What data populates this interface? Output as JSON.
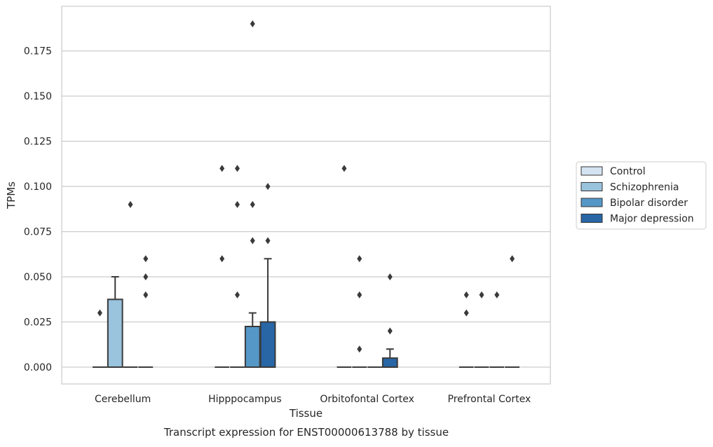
{
  "chart_data": {
    "type": "box",
    "caption": "Transcript expression for ENST00000613788 by tissue",
    "xlabel": "Tissue",
    "ylabel": "TPMs",
    "ylim": [
      -0.0093,
      0.1997
    ],
    "yticks": [
      "0.000",
      "0.025",
      "0.050",
      "0.075",
      "0.100",
      "0.125",
      "0.150",
      "0.175"
    ],
    "grid": "horizontal",
    "legend_position": "right-outside",
    "categories": [
      "Cerebellum",
      "Hipppocampus",
      "Orbitofontal Cortex",
      "Prefrontal Cortex"
    ],
    "series": [
      {
        "name": "Control",
        "color": "#d4e3f1",
        "boxes": [
          {
            "q1": 0,
            "median": 0,
            "q3": 0,
            "whisker_low": 0,
            "whisker_high": 0,
            "outliers": [
              0.03
            ]
          },
          {
            "q1": 0,
            "median": 0,
            "q3": 0,
            "whisker_low": 0,
            "whisker_high": 0,
            "outliers": [
              0.06,
              0.11
            ]
          },
          {
            "q1": 0,
            "median": 0,
            "q3": 0,
            "whisker_low": 0,
            "whisker_high": 0,
            "outliers": [
              0.11
            ]
          },
          {
            "q1": 0,
            "median": 0,
            "q3": 0,
            "whisker_low": 0,
            "whisker_high": 0,
            "outliers": [
              0.03,
              0.04
            ]
          }
        ]
      },
      {
        "name": "Schizophrenia",
        "color": "#9ac3de",
        "boxes": [
          {
            "q1": 0,
            "median": 0,
            "q3": 0.0375,
            "whisker_low": 0,
            "whisker_high": 0.05,
            "outliers": []
          },
          {
            "q1": 0,
            "median": 0,
            "q3": 0,
            "whisker_low": 0,
            "whisker_high": 0,
            "outliers": [
              0.04,
              0.09,
              0.11
            ]
          },
          {
            "q1": 0,
            "median": 0,
            "q3": 0,
            "whisker_low": 0,
            "whisker_high": 0,
            "outliers": [
              0.01,
              0.04,
              0.06
            ]
          },
          {
            "q1": 0,
            "median": 0,
            "q3": 0,
            "whisker_low": 0,
            "whisker_high": 0,
            "outliers": [
              0.04
            ]
          }
        ]
      },
      {
        "name": "Bipolar disorder",
        "color": "#5597c6",
        "boxes": [
          {
            "q1": 0,
            "median": 0,
            "q3": 0,
            "whisker_low": 0,
            "whisker_high": 0,
            "outliers": [
              0.09
            ]
          },
          {
            "q1": 0,
            "median": 0,
            "q3": 0.0225,
            "whisker_low": 0,
            "whisker_high": 0.03,
            "outliers": [
              0.07,
              0.09,
              0.19
            ]
          },
          {
            "q1": 0,
            "median": 0,
            "q3": 0,
            "whisker_low": 0,
            "whisker_high": 0,
            "outliers": []
          },
          {
            "q1": 0,
            "median": 0,
            "q3": 0,
            "whisker_low": 0,
            "whisker_high": 0,
            "outliers": [
              0.04
            ]
          }
        ]
      },
      {
        "name": "Major depression",
        "color": "#2866a6",
        "boxes": [
          {
            "q1": 0,
            "median": 0,
            "q3": 0,
            "whisker_low": 0,
            "whisker_high": 0,
            "outliers": [
              0.04,
              0.05,
              0.06
            ]
          },
          {
            "q1": 0,
            "median": 0,
            "q3": 0.025,
            "whisker_low": 0,
            "whisker_high": 0.06,
            "outliers": [
              0.07,
              0.1
            ]
          },
          {
            "q1": 0,
            "median": 0,
            "q3": 0.005,
            "whisker_low": 0,
            "whisker_high": 0.01,
            "outliers": [
              0.02,
              0.05
            ]
          },
          {
            "q1": 0,
            "median": 0,
            "q3": 0,
            "whisker_low": 0,
            "whisker_high": 0,
            "outliers": [
              0.06
            ]
          }
        ]
      }
    ]
  }
}
